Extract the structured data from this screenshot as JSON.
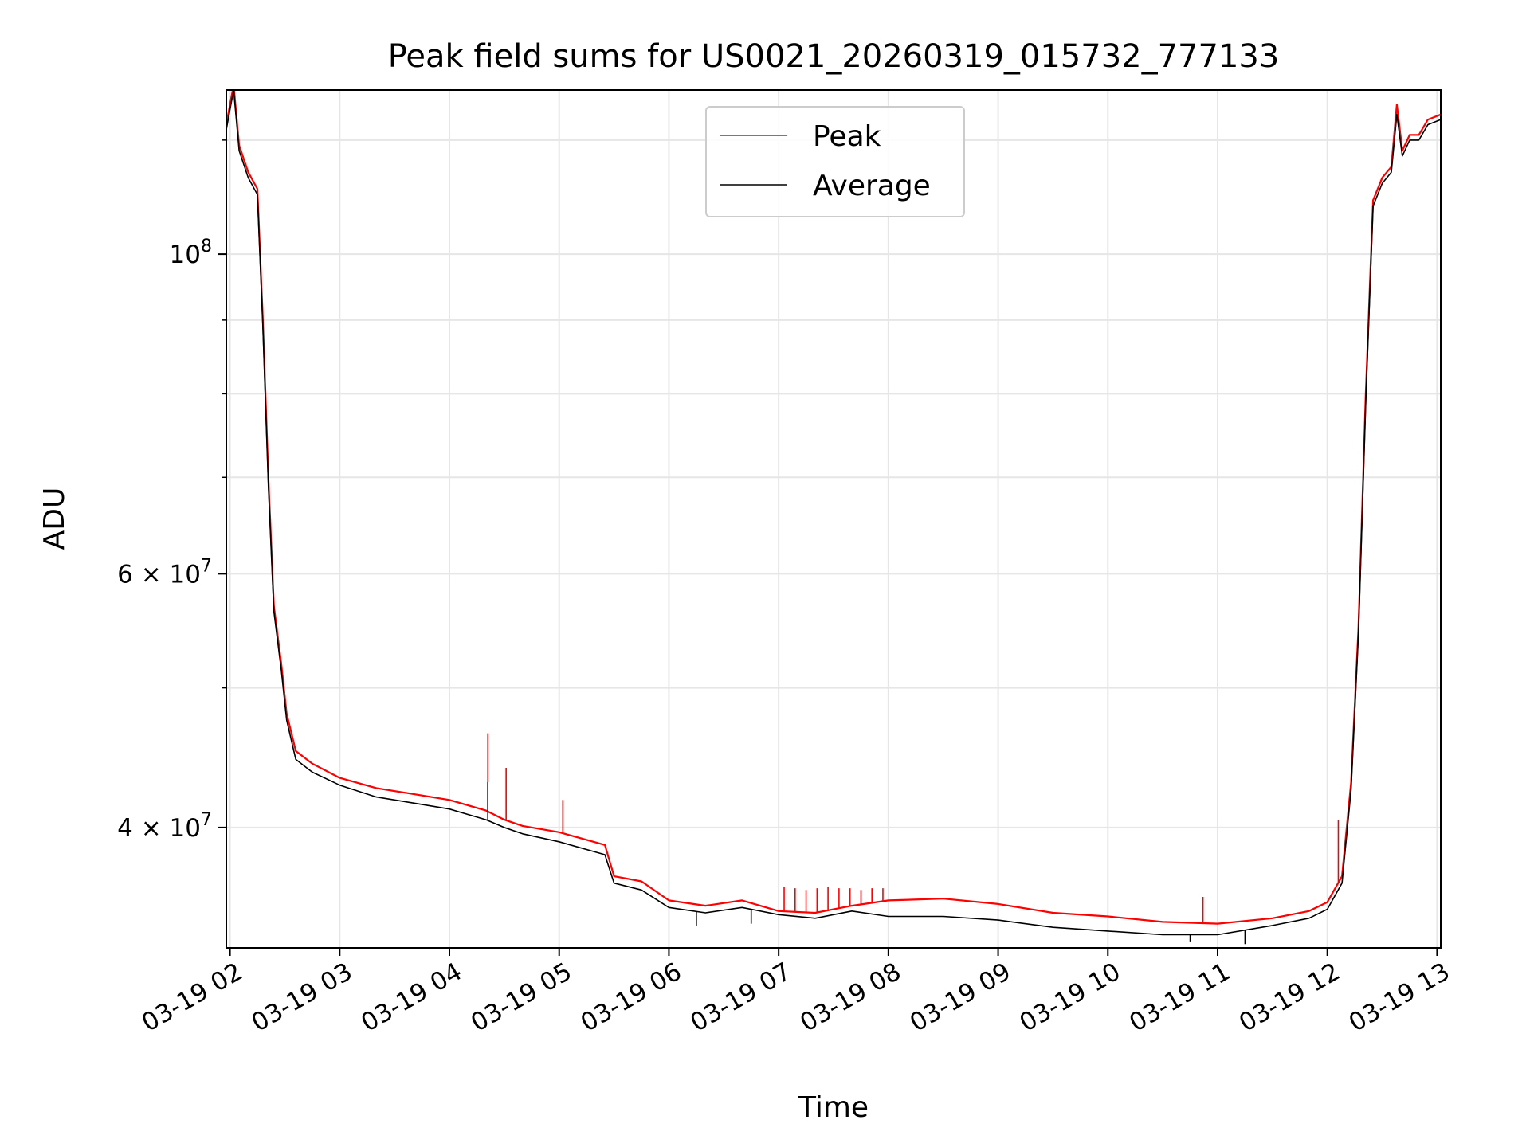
{
  "chart_data": {
    "type": "line",
    "title": "Peak field sums for US0021_20260319_015732_777133",
    "xlabel": "Time",
    "ylabel": "ADU",
    "yscale": "log",
    "grid": true,
    "legend_position": "top-center",
    "xlim": [
      "2026-03-19T01:58",
      "2026-03-19T13:02"
    ],
    "ylim": [
      33000000,
      130000000
    ],
    "x_ticks": [
      {
        "value": "2026-03-19T02:00",
        "label": "03-19 02"
      },
      {
        "value": "2026-03-19T03:00",
        "label": "03-19 03"
      },
      {
        "value": "2026-03-19T04:00",
        "label": "03-19 04"
      },
      {
        "value": "2026-03-19T05:00",
        "label": "03-19 05"
      },
      {
        "value": "2026-03-19T06:00",
        "label": "03-19 06"
      },
      {
        "value": "2026-03-19T07:00",
        "label": "03-19 07"
      },
      {
        "value": "2026-03-19T08:00",
        "label": "03-19 08"
      },
      {
        "value": "2026-03-19T09:00",
        "label": "03-19 09"
      },
      {
        "value": "2026-03-19T10:00",
        "label": "03-19 10"
      },
      {
        "value": "2026-03-19T11:00",
        "label": "03-19 11"
      },
      {
        "value": "2026-03-19T12:00",
        "label": "03-19 12"
      },
      {
        "value": "2026-03-19T13:00",
        "label": "03-19 13"
      }
    ],
    "y_major_ticks": [
      {
        "value": 40000000,
        "base": "4 × 10",
        "exp": "7"
      },
      {
        "value": 60000000,
        "base": "6 × 10",
        "exp": "7"
      },
      {
        "value": 100000000,
        "base": "10",
        "exp": "8"
      }
    ],
    "y_minor_gridlines": [
      50000000,
      70000000,
      80000000,
      90000000,
      120000000
    ],
    "colors": {
      "peak": "#ff0000",
      "average": "#000000",
      "grid": "#e6e6e6"
    },
    "series": [
      {
        "name": "Peak",
        "color": "#ff0000",
        "points": [
          [
            "2026-03-19T01:58",
            123000000
          ],
          [
            "2026-03-19T02:00",
            127000000
          ],
          [
            "2026-03-19T02:02",
            131000000
          ],
          [
            "2026-03-19T02:05",
            119000000
          ],
          [
            "2026-03-19T02:10",
            114000000
          ],
          [
            "2026-03-19T02:15",
            111000000
          ],
          [
            "2026-03-19T02:18",
            90000000
          ],
          [
            "2026-03-19T02:21",
            70000000
          ],
          [
            "2026-03-19T02:24",
            57000000
          ],
          [
            "2026-03-19T02:28",
            52000000
          ],
          [
            "2026-03-19T02:31",
            48000000
          ],
          [
            "2026-03-19T02:36",
            45200000
          ],
          [
            "2026-03-19T02:45",
            44300000
          ],
          [
            "2026-03-19T03:00",
            43300000
          ],
          [
            "2026-03-19T03:20",
            42600000
          ],
          [
            "2026-03-19T03:40",
            42200000
          ],
          [
            "2026-03-19T04:00",
            41800000
          ],
          [
            "2026-03-19T04:20",
            41100000
          ],
          [
            "2026-03-19T04:30",
            40500000
          ],
          [
            "2026-03-19T04:40",
            40100000
          ],
          [
            "2026-03-19T05:00",
            39700000
          ],
          [
            "2026-03-19T05:25",
            38900000
          ],
          [
            "2026-03-19T05:30",
            37000000
          ],
          [
            "2026-03-19T05:45",
            36700000
          ],
          [
            "2026-03-19T06:00",
            35600000
          ],
          [
            "2026-03-19T06:20",
            35300000
          ],
          [
            "2026-03-19T06:40",
            35600000
          ],
          [
            "2026-03-19T07:00",
            35000000
          ],
          [
            "2026-03-19T07:20",
            34900000
          ],
          [
            "2026-03-19T07:40",
            35300000
          ],
          [
            "2026-03-19T08:00",
            35600000
          ],
          [
            "2026-03-19T08:30",
            35700000
          ],
          [
            "2026-03-19T09:00",
            35400000
          ],
          [
            "2026-03-19T09:30",
            34900000
          ],
          [
            "2026-03-19T10:00",
            34700000
          ],
          [
            "2026-03-19T10:30",
            34400000
          ],
          [
            "2026-03-19T11:00",
            34300000
          ],
          [
            "2026-03-19T11:30",
            34600000
          ],
          [
            "2026-03-19T11:50",
            35000000
          ],
          [
            "2026-03-19T12:00",
            35500000
          ],
          [
            "2026-03-19T12:08",
            37000000
          ],
          [
            "2026-03-19T12:13",
            43000000
          ],
          [
            "2026-03-19T12:17",
            55000000
          ],
          [
            "2026-03-19T12:21",
            80000000
          ],
          [
            "2026-03-19T12:25",
            109000000
          ],
          [
            "2026-03-19T12:30",
            113000000
          ],
          [
            "2026-03-19T12:35",
            115000000
          ],
          [
            "2026-03-19T12:38",
            127000000
          ],
          [
            "2026-03-19T12:41",
            118000000
          ],
          [
            "2026-03-19T12:45",
            121000000
          ],
          [
            "2026-03-19T12:50",
            121000000
          ],
          [
            "2026-03-19T12:55",
            124000000
          ],
          [
            "2026-03-19T13:02",
            125000000
          ]
        ],
        "spikes": [
          [
            "2026-03-19T04:21",
            46500000
          ],
          [
            "2026-03-19T04:31",
            44000000
          ],
          [
            "2026-03-19T05:02",
            41800000
          ],
          [
            "2026-03-19T07:03",
            36400000
          ],
          [
            "2026-03-19T07:09",
            36300000
          ],
          [
            "2026-03-19T07:15",
            36200000
          ],
          [
            "2026-03-19T07:21",
            36300000
          ],
          [
            "2026-03-19T07:27",
            36400000
          ],
          [
            "2026-03-19T07:33",
            36300000
          ],
          [
            "2026-03-19T07:39",
            36300000
          ],
          [
            "2026-03-19T07:45",
            36200000
          ],
          [
            "2026-03-19T07:51",
            36300000
          ],
          [
            "2026-03-19T07:57",
            36300000
          ],
          [
            "2026-03-19T10:52",
            35800000
          ],
          [
            "2026-03-19T12:06",
            40500000
          ]
        ]
      },
      {
        "name": "Average",
        "color": "#000000",
        "points": [
          [
            "2026-03-19T01:58",
            122000000
          ],
          [
            "2026-03-19T02:00",
            126000000
          ],
          [
            "2026-03-19T02:02",
            130000000
          ],
          [
            "2026-03-19T02:05",
            118000000
          ],
          [
            "2026-03-19T02:10",
            113000000
          ],
          [
            "2026-03-19T02:15",
            110000000
          ],
          [
            "2026-03-19T02:18",
            89000000
          ],
          [
            "2026-03-19T02:21",
            69000000
          ],
          [
            "2026-03-19T02:24",
            56500000
          ],
          [
            "2026-03-19T02:28",
            51500000
          ],
          [
            "2026-03-19T02:31",
            47500000
          ],
          [
            "2026-03-19T02:36",
            44600000
          ],
          [
            "2026-03-19T02:45",
            43700000
          ],
          [
            "2026-03-19T03:00",
            42800000
          ],
          [
            "2026-03-19T03:20",
            42000000
          ],
          [
            "2026-03-19T03:40",
            41600000
          ],
          [
            "2026-03-19T04:00",
            41200000
          ],
          [
            "2026-03-19T04:20",
            40500000
          ],
          [
            "2026-03-19T04:30",
            40000000
          ],
          [
            "2026-03-19T04:40",
            39600000
          ],
          [
            "2026-03-19T05:00",
            39100000
          ],
          [
            "2026-03-19T05:25",
            38300000
          ],
          [
            "2026-03-19T05:30",
            36600000
          ],
          [
            "2026-03-19T05:45",
            36200000
          ],
          [
            "2026-03-19T06:00",
            35200000
          ],
          [
            "2026-03-19T06:20",
            34900000
          ],
          [
            "2026-03-19T06:40",
            35200000
          ],
          [
            "2026-03-19T07:00",
            34800000
          ],
          [
            "2026-03-19T07:20",
            34600000
          ],
          [
            "2026-03-19T07:40",
            35000000
          ],
          [
            "2026-03-19T08:00",
            34700000
          ],
          [
            "2026-03-19T08:30",
            34700000
          ],
          [
            "2026-03-19T09:00",
            34500000
          ],
          [
            "2026-03-19T09:30",
            34100000
          ],
          [
            "2026-03-19T10:00",
            33900000
          ],
          [
            "2026-03-19T10:30",
            33700000
          ],
          [
            "2026-03-19T11:00",
            33700000
          ],
          [
            "2026-03-19T11:30",
            34200000
          ],
          [
            "2026-03-19T11:50",
            34600000
          ],
          [
            "2026-03-19T12:00",
            35100000
          ],
          [
            "2026-03-19T12:08",
            36600000
          ],
          [
            "2026-03-19T12:13",
            42500000
          ],
          [
            "2026-03-19T12:17",
            54500000
          ],
          [
            "2026-03-19T12:21",
            79000000
          ],
          [
            "2026-03-19T12:25",
            108000000
          ],
          [
            "2026-03-19T12:30",
            112000000
          ],
          [
            "2026-03-19T12:35",
            114000000
          ],
          [
            "2026-03-19T12:38",
            125000000
          ],
          [
            "2026-03-19T12:41",
            117000000
          ],
          [
            "2026-03-19T12:45",
            120000000
          ],
          [
            "2026-03-19T12:50",
            120000000
          ],
          [
            "2026-03-19T12:55",
            123000000
          ],
          [
            "2026-03-19T13:02",
            124000000
          ]
        ],
        "spikes": [
          [
            "2026-03-19T04:21",
            43000000
          ],
          [
            "2026-03-19T06:15",
            34200000
          ],
          [
            "2026-03-19T06:45",
            34300000
          ],
          [
            "2026-03-19T10:45",
            33300000
          ],
          [
            "2026-03-19T11:15",
            33200000
          ]
        ]
      }
    ]
  }
}
